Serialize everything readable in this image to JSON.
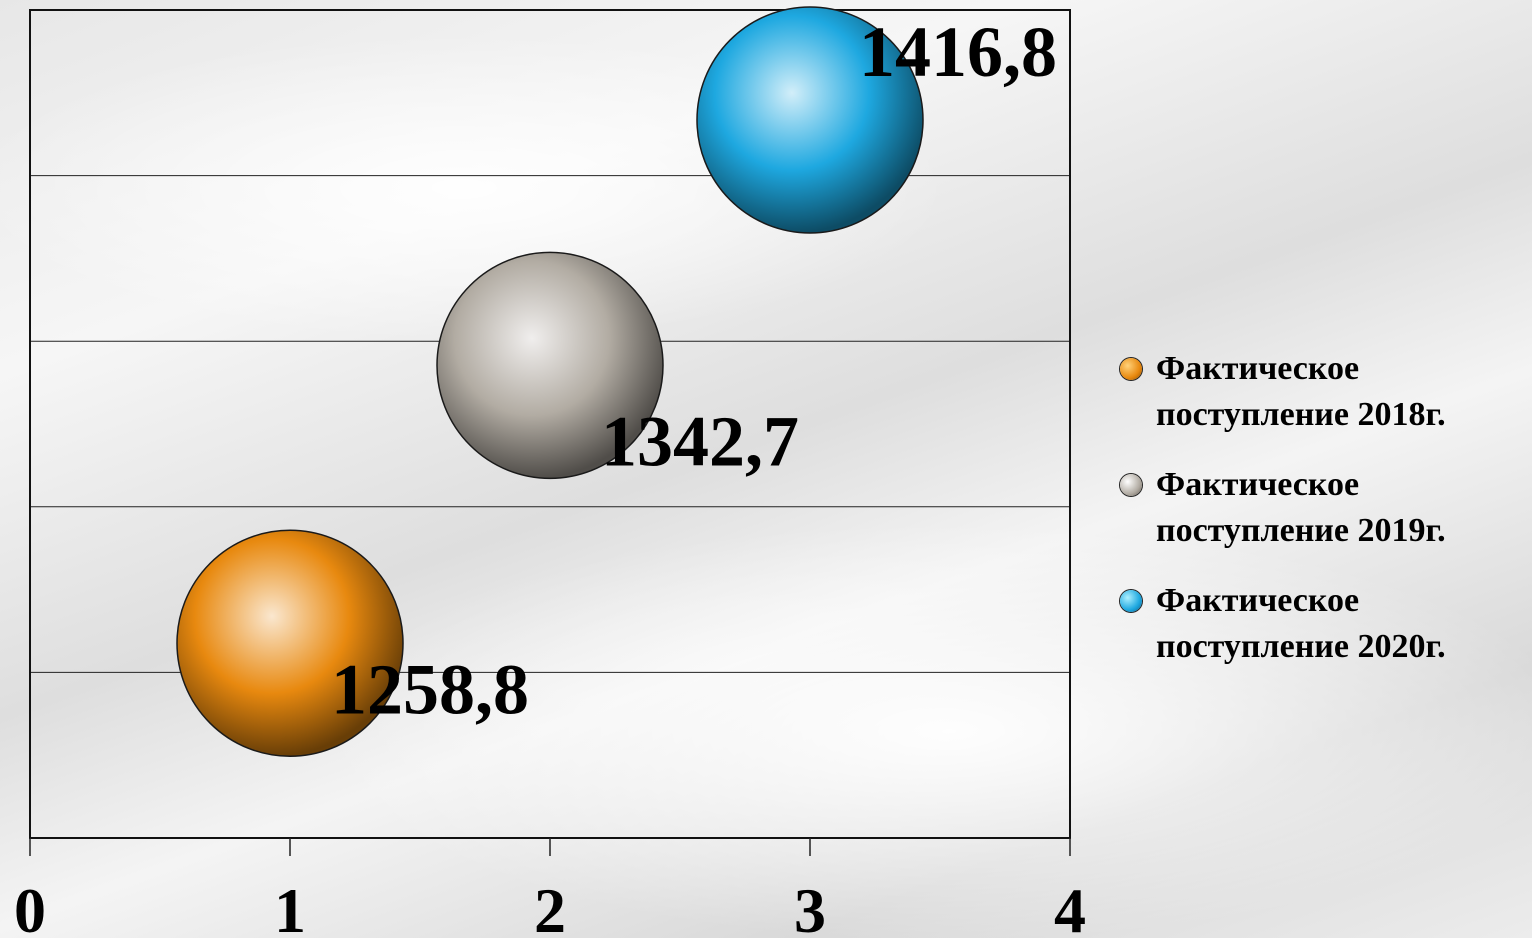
{
  "chart_data": {
    "type": "bubble",
    "x": [
      1,
      2,
      3
    ],
    "y": [
      1258.8,
      1342.7,
      1416.8
    ],
    "data_labels": [
      "1258,8",
      "1342,7",
      "1416,8"
    ],
    "series": [
      {
        "name": "Фактическое поступление 2018г.",
        "x": 1,
        "value": 1258.8,
        "label": "1258,8",
        "color": "#e8890f"
      },
      {
        "name": "Фактическое поступление 2019г.",
        "x": 2,
        "value": 1342.7,
        "label": "1342,7",
        "color": "#b2aca3"
      },
      {
        "name": "Фактическое поступление 2020г.",
        "x": 3,
        "value": 1416.8,
        "label": "1416,8",
        "color": "#1ea8e0"
      }
    ],
    "x_ticks": [
      "0",
      "1",
      "2",
      "3",
      "4"
    ],
    "xlim": [
      0,
      4
    ],
    "ylim": [
      1200,
      1450
    ],
    "grid": true,
    "legend_position": "right",
    "title": "",
    "xlabel": "",
    "ylabel": ""
  }
}
